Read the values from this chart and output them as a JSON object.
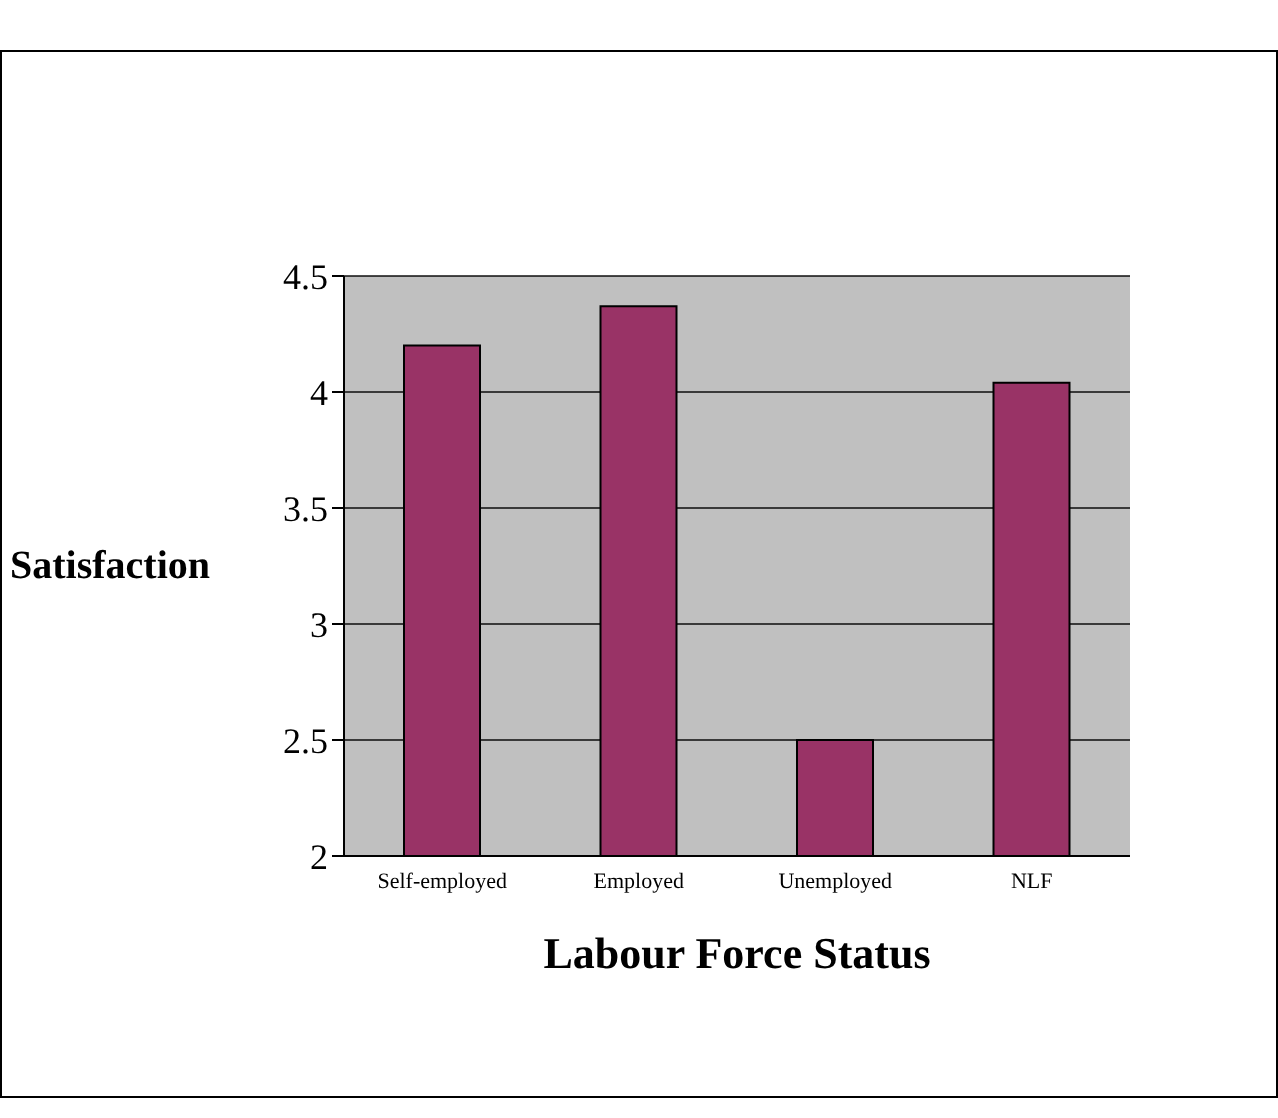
{
  "chart_data": {
    "type": "bar",
    "xlabel": "Labour Force Status",
    "ylabel": "Satisfaction",
    "categories": [
      "Self-employed",
      "Employed",
      "Unemployed",
      "NLF"
    ],
    "values": [
      4.2,
      4.37,
      2.5,
      4.04
    ],
    "color": "#993366",
    "ylim": [
      2,
      4.5
    ],
    "yticks": [
      2,
      2.5,
      3,
      3.5,
      4,
      4.5
    ],
    "grid": "y"
  }
}
